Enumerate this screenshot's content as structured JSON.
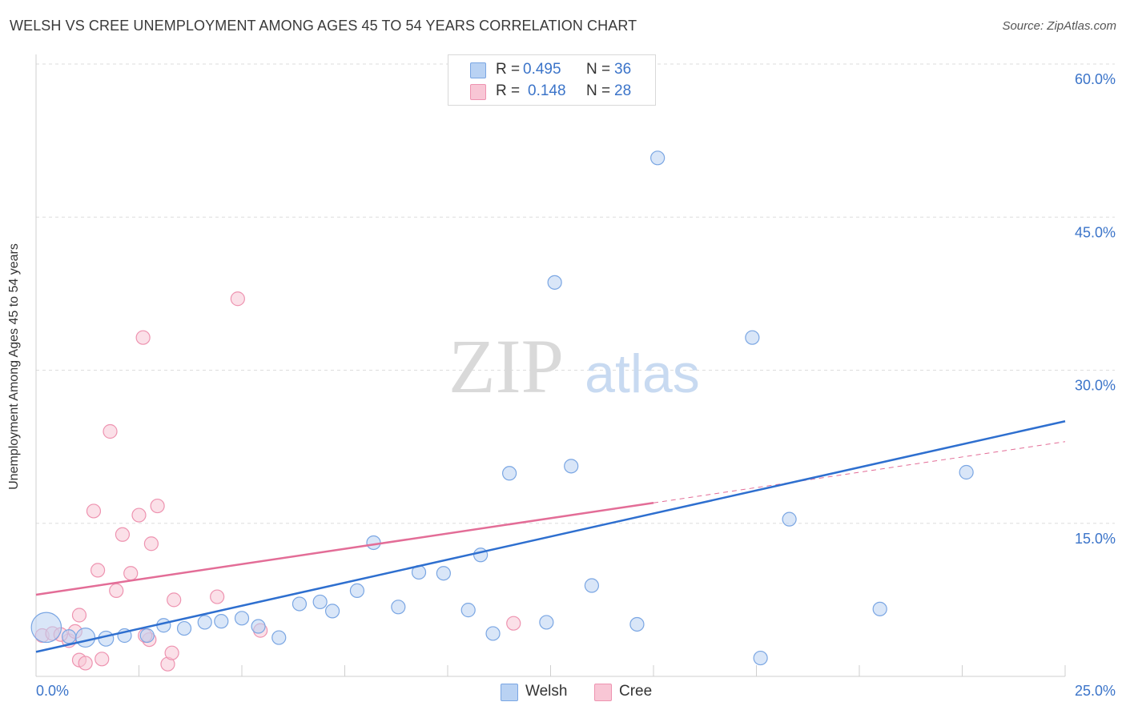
{
  "header": {
    "title": "WELSH VS CREE UNEMPLOYMENT AMONG AGES 45 TO 54 YEARS CORRELATION CHART",
    "source": "Source: ZipAtlas.com"
  },
  "watermark": {
    "zip": "ZIP",
    "atlas": "atlas"
  },
  "legend": {
    "welsh": {
      "r_label": "R =",
      "r_value": "0.495",
      "n_label": "N =",
      "n_value": "36"
    },
    "cree": {
      "r_label": "R =",
      "r_value": "0.148",
      "n_label": "N =",
      "n_value": "28"
    }
  },
  "colors": {
    "welsh_fill": "#b9d2f3",
    "welsh_stroke": "#7aa6e3",
    "welsh_line": "#2e6fcf",
    "cree_fill": "#f8c6d5",
    "cree_stroke": "#ee93b0",
    "cree_line": "#e36d97",
    "grid": "#dddddd",
    "tick_label": "#3b74c9"
  },
  "chart_data": {
    "type": "scatter",
    "title": "WELSH VS CREE UNEMPLOYMENT AMONG AGES 45 TO 54 YEARS CORRELATION CHART",
    "xlabel": "",
    "ylabel": "Unemployment Among Ages 45 to 54 years",
    "xlim": [
      0,
      25
    ],
    "ylim": [
      0,
      60
    ],
    "x_tick_labels": [
      "0.0%",
      "25.0%"
    ],
    "y_ticks": [
      15,
      30,
      45,
      60
    ],
    "y_tick_labels": [
      "15.0%",
      "30.0%",
      "45.0%",
      "60.0%"
    ],
    "grid": true,
    "legend_position": "top-center",
    "series": [
      {
        "name": "Welsh",
        "points": [
          [
            0.25,
            4.8,
            22
          ],
          [
            1.2,
            3.8,
            14
          ],
          [
            1.7,
            3.7,
            11
          ],
          [
            2.15,
            4.0,
            10
          ],
          [
            2.7,
            4.0,
            10
          ],
          [
            3.1,
            5.0,
            10
          ],
          [
            3.6,
            4.7,
            10
          ],
          [
            4.1,
            5.3,
            10
          ],
          [
            4.5,
            5.4,
            10
          ],
          [
            5.0,
            5.7,
            10
          ],
          [
            5.4,
            4.9,
            10
          ],
          [
            5.9,
            3.8,
            10
          ],
          [
            6.4,
            7.1,
            10
          ],
          [
            6.9,
            7.3,
            10
          ],
          [
            7.2,
            6.4,
            10
          ],
          [
            7.8,
            8.4,
            10
          ],
          [
            8.2,
            13.1,
            10
          ],
          [
            8.8,
            6.8,
            10
          ],
          [
            9.3,
            10.2,
            10
          ],
          [
            9.9,
            10.1,
            10
          ],
          [
            10.5,
            6.5,
            10
          ],
          [
            10.8,
            11.9,
            10
          ],
          [
            11.1,
            4.2,
            10
          ],
          [
            11.5,
            19.9,
            10
          ],
          [
            12.4,
            5.3,
            10
          ],
          [
            12.6,
            38.6,
            10
          ],
          [
            13.0,
            20.6,
            10
          ],
          [
            13.5,
            8.9,
            10
          ],
          [
            14.6,
            5.1,
            10
          ],
          [
            15.1,
            50.8,
            10
          ],
          [
            17.4,
            33.2,
            10
          ],
          [
            17.6,
            1.8,
            10
          ],
          [
            18.3,
            15.4,
            10
          ],
          [
            20.5,
            6.6,
            10
          ],
          [
            22.6,
            20.0,
            10
          ],
          [
            0.8,
            3.9,
            10
          ]
        ],
        "trend": {
          "x": [
            0,
            25
          ],
          "y": [
            2.4,
            25.0
          ]
        }
      },
      {
        "name": "Cree",
        "points": [
          [
            0.15,
            4.0,
            10
          ],
          [
            0.4,
            4.2,
            10
          ],
          [
            0.8,
            3.5,
            10
          ],
          [
            0.95,
            4.4,
            10
          ],
          [
            1.05,
            6.0,
            10
          ],
          [
            1.05,
            1.6,
            10
          ],
          [
            1.2,
            1.3,
            10
          ],
          [
            1.4,
            16.2,
            10
          ],
          [
            1.5,
            10.4,
            10
          ],
          [
            1.6,
            1.7,
            10
          ],
          [
            1.8,
            24.0,
            10
          ],
          [
            1.95,
            8.4,
            10
          ],
          [
            2.1,
            13.9,
            10
          ],
          [
            2.3,
            10.1,
            10
          ],
          [
            2.5,
            15.8,
            10
          ],
          [
            2.6,
            33.2,
            10
          ],
          [
            2.75,
            3.6,
            10
          ],
          [
            2.8,
            13.0,
            10
          ],
          [
            2.95,
            16.7,
            10
          ],
          [
            3.2,
            1.2,
            10
          ],
          [
            3.3,
            2.3,
            10
          ],
          [
            3.35,
            7.5,
            10
          ],
          [
            4.4,
            7.8,
            10
          ],
          [
            4.9,
            37.0,
            10
          ],
          [
            5.45,
            4.5,
            10
          ],
          [
            11.6,
            5.2,
            10
          ],
          [
            0.6,
            4.1,
            10
          ],
          [
            2.65,
            4.0,
            10
          ]
        ],
        "trend": {
          "x": [
            0,
            15
          ],
          "y": [
            8.0,
            17.0
          ]
        },
        "trend_dashed": {
          "x": [
            15,
            25
          ],
          "y": [
            17.0,
            23.0
          ]
        }
      }
    ]
  },
  "bottom_legend": [
    {
      "label": "Welsh"
    },
    {
      "label": "Cree"
    }
  ]
}
